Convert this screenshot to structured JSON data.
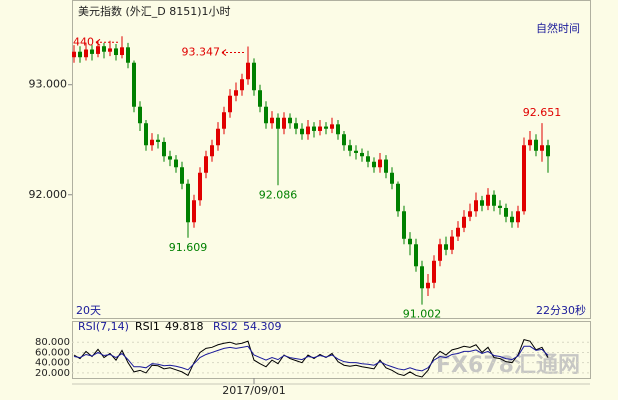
{
  "chart_data": [
    {
      "type": "candlestick",
      "title": "美元指数 (外汇_D 8151)1小时",
      "subtitle": "自然时间",
      "footer_left": "20天",
      "footer_right": "22分30秒",
      "up_color": "#e00000",
      "down_color": "#008000",
      "ylim": [
        90.88,
        93.77
      ],
      "yticks": [
        {
          "value": 92,
          "label": "92.000"
        },
        {
          "value": 93,
          "label": "93.000"
        }
      ],
      "annotations": [
        "440",
        "93.347",
        "92.086",
        "91.609",
        "91.002",
        "92.651"
      ],
      "open": [
        93.25,
        93.3,
        93.25,
        93.32,
        93.28,
        93.35,
        93.3,
        93.33,
        93.27,
        93.34,
        93.2,
        92.8,
        92.65,
        92.45,
        92.5,
        92.48,
        92.35,
        92.32,
        92.25,
        92.1,
        91.75,
        91.95,
        92.2,
        92.35,
        92.45,
        92.6,
        92.75,
        92.9,
        92.95,
        93.05,
        93.2,
        92.95,
        92.8,
        92.65,
        92.7,
        92.6,
        92.7,
        92.65,
        92.6,
        92.55,
        92.62,
        92.58,
        92.62,
        92.6,
        92.64,
        92.55,
        92.45,
        92.4,
        92.38,
        92.35,
        92.3,
        92.25,
        92.32,
        92.2,
        92.1,
        91.85,
        91.6,
        91.55,
        91.35,
        91.15,
        91.2,
        91.4,
        91.55,
        91.5,
        91.62,
        91.7,
        91.8,
        91.85,
        91.95,
        91.9,
        92.0,
        91.9,
        91.88,
        91.8,
        91.75,
        91.85,
        92.45,
        92.5,
        92.4,
        92.45
      ],
      "high": [
        93.36,
        93.35,
        93.38,
        93.36,
        93.4,
        93.38,
        93.4,
        93.37,
        93.44,
        93.38,
        93.22,
        92.85,
        92.68,
        92.56,
        92.55,
        92.52,
        92.4,
        92.36,
        92.3,
        92.14,
        92.0,
        92.25,
        92.4,
        92.5,
        92.66,
        92.8,
        92.96,
        93.02,
        93.1,
        93.347,
        93.24,
        93.0,
        92.85,
        92.76,
        92.74,
        92.75,
        92.74,
        92.7,
        92.65,
        92.68,
        92.66,
        92.68,
        92.66,
        92.7,
        92.68,
        92.58,
        92.5,
        92.45,
        92.42,
        92.4,
        92.34,
        92.38,
        92.36,
        92.25,
        92.12,
        91.9,
        91.66,
        91.6,
        91.4,
        91.28,
        91.45,
        91.6,
        91.62,
        91.68,
        91.76,
        91.86,
        91.92,
        92.02,
        91.99,
        92.06,
        92.04,
        91.95,
        91.92,
        91.85,
        91.9,
        92.52,
        92.58,
        92.55,
        92.651,
        92.5
      ],
      "low": [
        93.2,
        93.2,
        93.22,
        93.22,
        93.25,
        93.24,
        93.26,
        93.22,
        93.24,
        93.15,
        92.75,
        92.58,
        92.4,
        92.4,
        92.42,
        92.3,
        92.26,
        92.2,
        92.05,
        91.609,
        91.7,
        91.9,
        92.15,
        92.3,
        92.4,
        92.55,
        92.7,
        92.85,
        92.9,
        93.0,
        92.9,
        92.75,
        92.6,
        92.6,
        92.086,
        92.55,
        92.6,
        92.55,
        92.5,
        92.5,
        92.52,
        92.54,
        92.55,
        92.56,
        92.5,
        92.4,
        92.35,
        92.32,
        92.3,
        92.25,
        92.2,
        92.2,
        92.15,
        92.05,
        91.8,
        91.55,
        91.45,
        91.3,
        91.002,
        91.08,
        91.15,
        91.35,
        91.45,
        91.46,
        91.58,
        91.66,
        91.76,
        91.8,
        91.85,
        91.86,
        91.85,
        91.82,
        91.75,
        91.7,
        91.7,
        91.82,
        92.4,
        92.35,
        92.3,
        92.2
      ],
      "close": [
        93.3,
        93.25,
        93.32,
        93.28,
        93.35,
        93.3,
        93.33,
        93.27,
        93.34,
        93.2,
        92.8,
        92.65,
        92.45,
        92.5,
        92.48,
        92.35,
        92.32,
        92.25,
        92.1,
        91.75,
        91.95,
        92.2,
        92.35,
        92.45,
        92.6,
        92.75,
        92.9,
        92.95,
        93.05,
        93.2,
        92.95,
        92.8,
        92.65,
        92.7,
        92.6,
        92.7,
        92.65,
        92.6,
        92.55,
        92.62,
        92.58,
        92.62,
        92.6,
        92.64,
        92.55,
        92.45,
        92.4,
        92.38,
        92.35,
        92.3,
        92.25,
        92.32,
        92.2,
        92.1,
        91.85,
        91.6,
        91.55,
        91.35,
        91.15,
        91.2,
        91.4,
        91.55,
        91.5,
        91.62,
        91.7,
        91.8,
        91.85,
        91.95,
        91.9,
        92.0,
        91.9,
        91.88,
        91.8,
        91.75,
        91.85,
        92.45,
        92.5,
        92.4,
        92.45,
        92.35
      ]
    },
    {
      "type": "line",
      "title": "RSI(7,14)",
      "watermark": "FX678汇通网",
      "ylim": [
        12,
        98
      ],
      "yticks": [
        {
          "value": 20,
          "label": "20.000"
        },
        {
          "value": 40,
          "label": "40.000"
        },
        {
          "value": 60,
          "label": "60.000"
        },
        {
          "value": 80,
          "label": "80.000"
        }
      ],
      "categories": [
        null,
        null,
        null,
        null,
        null,
        null,
        null,
        null,
        null,
        null,
        null,
        null,
        null,
        null,
        null,
        null,
        null,
        null,
        null,
        null,
        null,
        null,
        null,
        null,
        null,
        null,
        null,
        null,
        null,
        null,
        "2017/09/01",
        null,
        null,
        null,
        null,
        null,
        null,
        null,
        null,
        null,
        null,
        null,
        null,
        null,
        null,
        null,
        null,
        null,
        null,
        null,
        null,
        null,
        null,
        null,
        null,
        null,
        null,
        null,
        null,
        null,
        null,
        null,
        null,
        null,
        null,
        null,
        null,
        null,
        null,
        null,
        null,
        null,
        null,
        null,
        null,
        null,
        null,
        null,
        null,
        null
      ],
      "series": [
        {
          "name": "RSI1",
          "color": "#000000",
          "values": [
            55,
            48,
            62,
            52,
            66,
            50,
            58,
            45,
            64,
            40,
            22,
            25,
            20,
            35,
            34,
            28,
            30,
            26,
            22,
            15,
            40,
            60,
            68,
            70,
            75,
            78,
            80,
            76,
            78,
            82,
            45,
            38,
            32,
            45,
            38,
            55,
            48,
            44,
            40,
            55,
            48,
            56,
            50,
            58,
            42,
            35,
            33,
            35,
            32,
            30,
            28,
            45,
            30,
            25,
            18,
            15,
            22,
            15,
            12,
            25,
            50,
            62,
            55,
            65,
            68,
            72,
            70,
            75,
            60,
            70,
            50,
            48,
            42,
            40,
            55,
            85,
            82,
            65,
            70,
            49.818
          ]
        },
        {
          "name": "RSI2",
          "color": "#1a1a9a",
          "values": [
            52,
            50,
            56,
            53,
            60,
            54,
            56,
            50,
            58,
            46,
            32,
            32,
            30,
            38,
            37,
            34,
            35,
            33,
            30,
            26,
            38,
            50,
            56,
            60,
            64,
            68,
            70,
            68,
            70,
            72,
            55,
            50,
            45,
            50,
            46,
            54,
            50,
            48,
            46,
            52,
            50,
            54,
            51,
            55,
            47,
            42,
            40,
            40,
            38,
            37,
            35,
            42,
            36,
            32,
            28,
            26,
            30,
            26,
            24,
            30,
            45,
            52,
            50,
            56,
            58,
            62,
            62,
            65,
            58,
            62,
            54,
            52,
            48,
            46,
            53,
            72,
            72,
            64,
            66,
            54.309
          ]
        }
      ]
    }
  ]
}
